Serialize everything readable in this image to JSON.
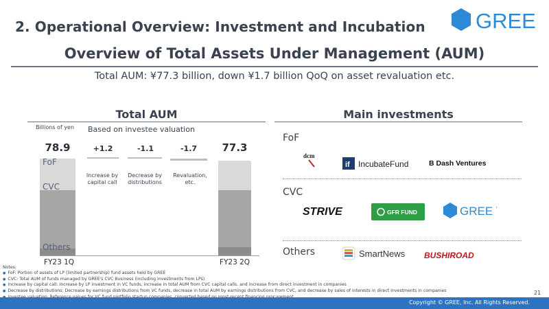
{
  "header": {
    "section_title": "2. Operational Overview: Investment and Incubation",
    "logo_text": "GREE",
    "main_title": "Overview of Total Assets Under Management (AUM)",
    "subtitle": "Total AUM: ¥77.3 billion, down ¥1.7 billion QoQ on asset revaluation etc."
  },
  "left": {
    "heading": "Total AUM",
    "unit": "Billions of yen",
    "basis": "Based on investee valuation",
    "segment_labels": [
      "FoF",
      "CVC",
      "Others"
    ],
    "chart_data": {
      "type": "bar",
      "title": "Total AUM",
      "ylabel": "Billions of yen",
      "categories": [
        "FY23 1Q",
        "Increase by capital call",
        "Decrease by distributions",
        "Revaluation, etc.",
        "FY23 2Q"
      ],
      "totals": [
        "78.9",
        "+1.2",
        "-1.1",
        "-1.7",
        "77.3"
      ],
      "start_value": 78.9,
      "deltas": [
        1.2,
        -1.1,
        -1.7
      ],
      "end_value": 77.3,
      "series": [
        {
          "name": "FoF",
          "color": "#d9d9d9",
          "start": 26.0,
          "end": 24.4
        },
        {
          "name": "CVC",
          "color": "#a6a6a6",
          "start": 47.2,
          "end": 46.1
        },
        {
          "name": "Others",
          "color": "#8c8c8c",
          "start": 5.7,
          "end": 6.8
        }
      ],
      "ylim": [
        0,
        80
      ]
    }
  },
  "right": {
    "heading": "Main investments",
    "categories": [
      {
        "name": "FoF",
        "logos": [
          "dcm",
          "IncubateFund",
          "B Dash Ventures"
        ]
      },
      {
        "name": "CVC",
        "logos": [
          "STRIVE",
          "GFR FUND",
          "GREE Ventures"
        ]
      },
      {
        "name": "Others",
        "logos": [
          "SmartNews",
          "BUSHIROAD"
        ]
      }
    ]
  },
  "notes": {
    "title": "Notes:",
    "items": [
      "FoF: Portion of assets of LP (limited partnership) fund assets held by GREE",
      "CVC: Total AUM of funds managed by GREE's CVC Business (including investments from LPs)",
      "Increase by capital call: Increase by LP investment in VC funds, increase in total AUM from CVC capital calls, and increase from direct investment in companies",
      "Decrease by distributions: Decrease by earnings distributions from VC funds, decrease in total AUM by earnings distributions from CVC, and decrease by sales of interests in direct investments in companies",
      "Investee valuation: Reference values for VC fund portfolio startup companies, converted based on most-recent financing procurement"
    ]
  },
  "footer": {
    "page_number": "21",
    "copyright": "Copyright © GREE, Inc. All Rights Reserved."
  },
  "colors": {
    "title": "#3a4250",
    "accent_blue": "#2d73bf",
    "fof": "#d9d9d9",
    "cvc": "#a6a6a6",
    "others": "#8c8c8c",
    "gfr_green": "#2e9e45"
  }
}
